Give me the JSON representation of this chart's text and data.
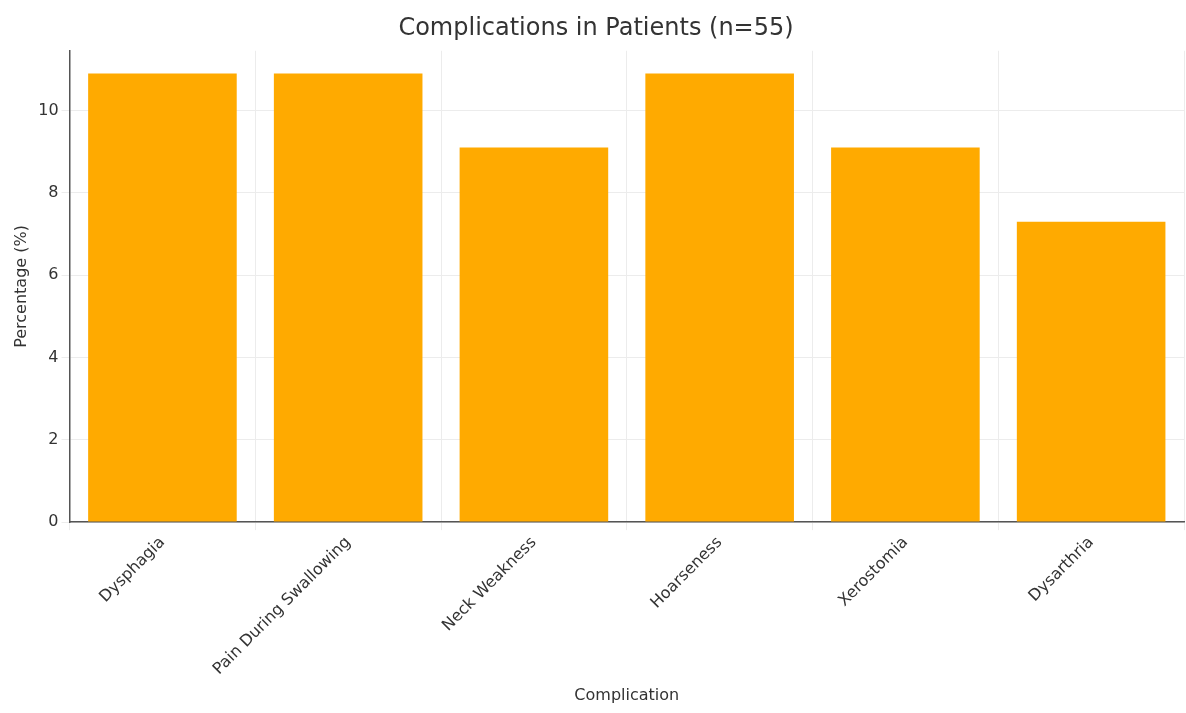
{
  "chart_data": {
    "type": "bar",
    "title": "Complications in Patients (n=55)",
    "xlabel": "Complication",
    "ylabel": "Percentage (%)",
    "categories": [
      "Dysphagia",
      "Pain During Swallowing",
      "Neck Weakness",
      "Hoarseness",
      "Xerostomia",
      "Dysarthria"
    ],
    "values": [
      10.9,
      10.9,
      9.1,
      10.9,
      9.1,
      7.3
    ],
    "color": "#ffaa00",
    "ylim": [
      0,
      11.45
    ],
    "yticks": [
      0,
      2,
      4,
      6,
      8,
      10
    ],
    "grid": true,
    "legend": false
  }
}
